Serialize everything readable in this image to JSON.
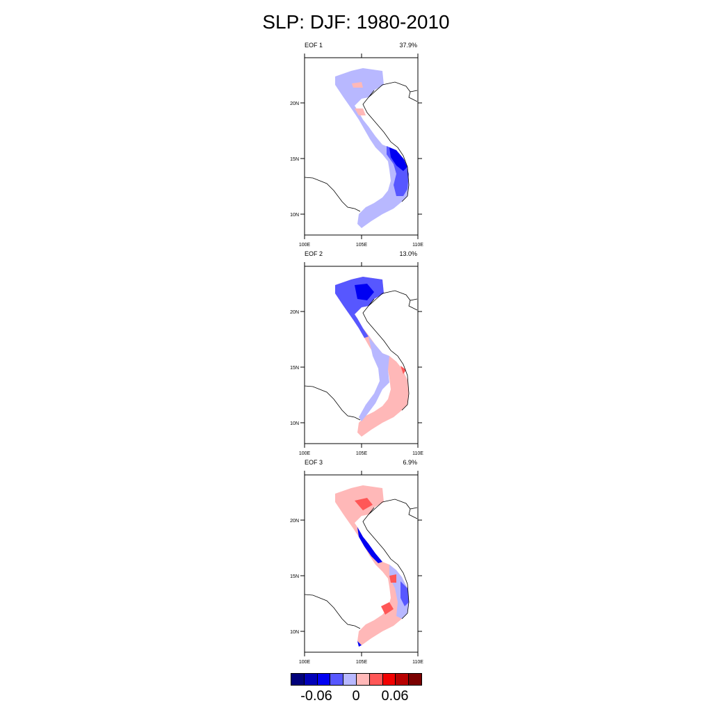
{
  "title": "SLP: DJF: 1980-2010",
  "panels": [
    {
      "label": "EOF 1",
      "variance": "37.9%"
    },
    {
      "label": "EOF 2",
      "variance": "13.0%"
    },
    {
      "label": "EOF 3",
      "variance": "6.9%"
    }
  ],
  "lat_ticks": [
    "20N",
    "15N",
    "10N"
  ],
  "lon_ticks": [
    "100E",
    "105E",
    "110E"
  ],
  "colorbar": {
    "colors": [
      "#00007a",
      "#0000b8",
      "#0000f2",
      "#5757ff",
      "#b8b8ff",
      "#ffb8b8",
      "#ff5757",
      "#f20000",
      "#b80000",
      "#7a0000"
    ],
    "labels": [
      "-0.06",
      "0",
      "0.06"
    ]
  }
}
